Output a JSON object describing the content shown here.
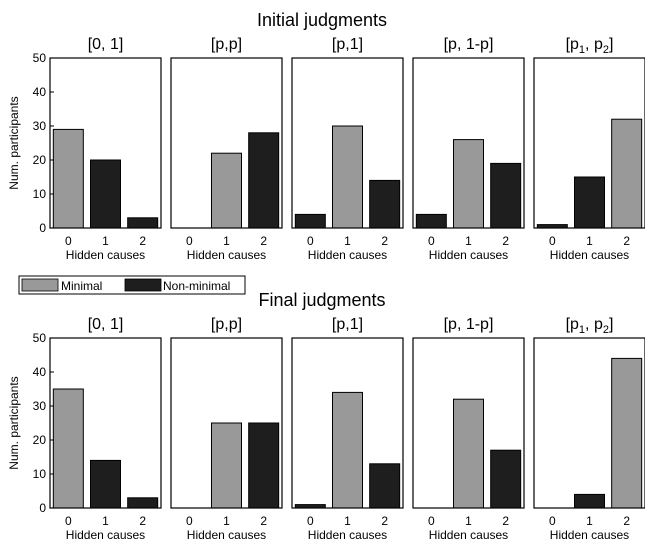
{
  "chart_data": [
    {
      "type": "bar",
      "section": "Initial judgments",
      "ylabel": "Num. participants",
      "xlabel": "Hidden causes",
      "categories": [
        "0",
        "1",
        "2"
      ],
      "ylim": [
        0,
        50
      ],
      "yticks": [
        0,
        10,
        20,
        30,
        40,
        50
      ],
      "panels": [
        {
          "title": "[0, 1]",
          "values": [
            29,
            20,
            3
          ],
          "types": [
            "minimal",
            "non-minimal",
            "non-minimal"
          ]
        },
        {
          "title": "[p,p]",
          "values": [
            0,
            22,
            28
          ],
          "types": [
            "minimal",
            "minimal",
            "non-minimal"
          ]
        },
        {
          "title": "[p,1]",
          "values": [
            4,
            30,
            14
          ],
          "types": [
            "non-minimal",
            "minimal",
            "non-minimal"
          ]
        },
        {
          "title": "[p, 1-p]",
          "values": [
            4,
            26,
            19
          ],
          "types": [
            "non-minimal",
            "minimal",
            "non-minimal"
          ]
        },
        {
          "title_parts": [
            "[p",
            "1",
            ", p",
            "2",
            "]"
          ],
          "values": [
            1,
            15,
            32
          ],
          "types": [
            "non-minimal",
            "non-minimal",
            "minimal"
          ]
        }
      ]
    },
    {
      "type": "bar",
      "section": "Final judgments",
      "ylabel": "Num. participants",
      "xlabel": "Hidden causes",
      "categories": [
        "0",
        "1",
        "2"
      ],
      "ylim": [
        0,
        50
      ],
      "yticks": [
        0,
        10,
        20,
        30,
        40,
        50
      ],
      "panels": [
        {
          "title": "[0, 1]",
          "values": [
            35,
            14,
            3
          ],
          "types": [
            "minimal",
            "non-minimal",
            "non-minimal"
          ]
        },
        {
          "title": "[p,p]",
          "values": [
            0,
            25,
            25
          ],
          "types": [
            "minimal",
            "minimal",
            "non-minimal"
          ]
        },
        {
          "title": "[p,1]",
          "values": [
            1,
            34,
            13
          ],
          "types": [
            "non-minimal",
            "minimal",
            "non-minimal"
          ]
        },
        {
          "title": "[p, 1-p]",
          "values": [
            0,
            32,
            17
          ],
          "types": [
            "non-minimal",
            "minimal",
            "non-minimal"
          ]
        },
        {
          "title_parts": [
            "[p",
            "1",
            ", p",
            "2",
            "]"
          ],
          "values": [
            0,
            4,
            44
          ],
          "types": [
            "non-minimal",
            "non-minimal",
            "minimal"
          ]
        }
      ]
    }
  ],
  "legend": [
    {
      "key": "minimal",
      "label": "Minimal",
      "color": "#999999"
    },
    {
      "key": "non-minimal",
      "label": "Non-minimal",
      "color": "#1e1e1e"
    }
  ]
}
